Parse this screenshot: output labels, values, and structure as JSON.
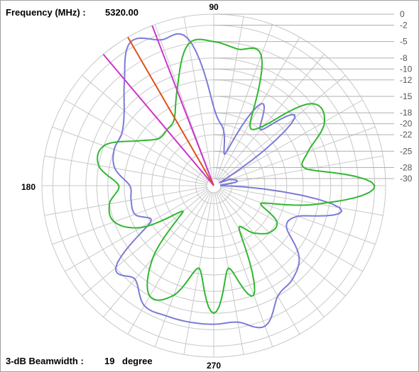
{
  "chart_data": {
    "type": "polar-line",
    "header": {
      "frequency_label": "Frequency (MHz) :",
      "frequency_value": "5320.00"
    },
    "footer": {
      "beamwidth_label": "3-dB Beamwidth :",
      "beamwidth_value": "19",
      "beamwidth_unit": "degree"
    },
    "angle_labels": {
      "top": "90",
      "left": "180",
      "bottom": "270"
    },
    "radial_ticks": [
      "0",
      "-2",
      "-5",
      "-8",
      "-10",
      "-12",
      "-15",
      "-18",
      "-20",
      "-22",
      "-25",
      "-28",
      "-30"
    ],
    "radial_range_db": [
      -30,
      0
    ],
    "grid": true,
    "colors": {
      "series_a": "#7b7bd8",
      "series_b": "#2fb82f",
      "peak_line": "#e0501a",
      "beamwidth_lines": "#cc33cc",
      "grid": "#c8c8c8"
    },
    "markers": {
      "peak_angle": 120,
      "beamwidth_edges": [
        111,
        130
      ]
    },
    "series": [
      {
        "color": "blue",
        "angles": [
          0,
          10,
          20,
          30,
          40,
          50,
          60,
          70,
          80,
          90,
          100,
          110,
          120,
          130,
          140,
          150,
          160,
          170,
          180,
          190,
          200,
          210,
          220,
          230,
          240,
          250,
          260,
          270,
          280,
          290,
          300,
          310,
          320,
          330,
          340,
          350
        ],
        "values": [
          -30,
          -27,
          -28,
          -29,
          -12,
          -18,
          -14,
          -25,
          -21,
          -17,
          -4,
          -3,
          -1,
          -6,
          -10,
          -12,
          -12,
          -13,
          -16,
          -16,
          -16,
          -18,
          -8,
          -9,
          -6,
          -6,
          -6,
          -6,
          -6,
          -4,
          -8,
          -9,
          -11,
          -16,
          -15,
          -8
        ]
      },
      {
        "color": "green",
        "angles": [
          0,
          10,
          20,
          30,
          40,
          50,
          60,
          70,
          80,
          90,
          100,
          110,
          120,
          130,
          140,
          150,
          160,
          170,
          180,
          190,
          200,
          210,
          220,
          230,
          240,
          250,
          260,
          270,
          280,
          290,
          300,
          310,
          320,
          330,
          340,
          350
        ],
        "values": [
          -2,
          -14,
          -13,
          -8,
          -8,
          -17,
          -18,
          -6,
          -6,
          -5,
          -5,
          -12,
          -17,
          -18,
          -18,
          -15,
          -10,
          -10,
          -14,
          -12,
          -12,
          -16,
          -24,
          -14,
          -8,
          -10,
          -16,
          -8,
          -16,
          -10,
          -22,
          -20,
          -18,
          -18,
          -22,
          -12
        ]
      }
    ]
  }
}
